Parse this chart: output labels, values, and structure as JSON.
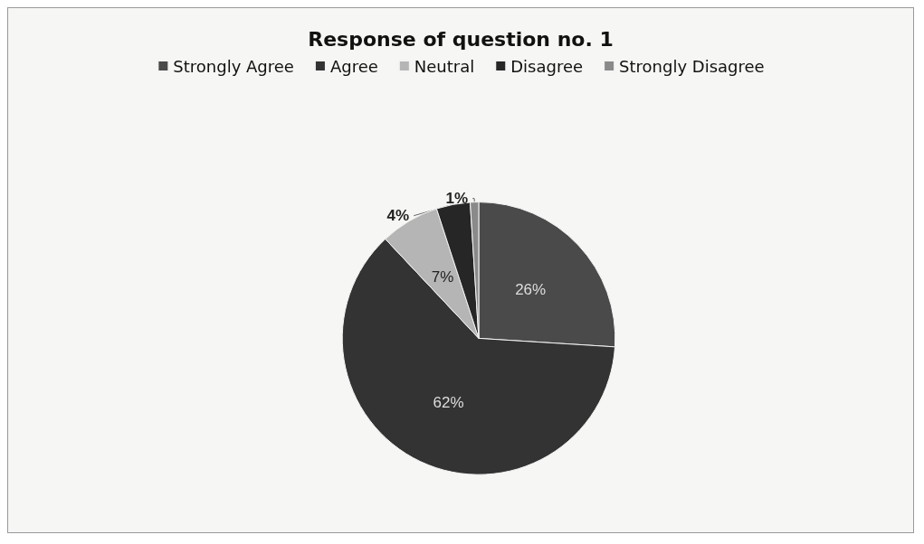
{
  "chart_data": {
    "type": "pie",
    "title": "Response of question no. 1",
    "categories": [
      "Strongly Agree",
      "Agree",
      "Neutral",
      "Disagree",
      "Strongly Disagree"
    ],
    "values": [
      26,
      62,
      7,
      4,
      1
    ],
    "colors": [
      "#4a4a4a",
      "#333333",
      "#b5b5b5",
      "#262626",
      "#8a8a8a"
    ],
    "value_labels": [
      "26%",
      "62%",
      "7%",
      "4%",
      "1%"
    ],
    "legend": "top"
  }
}
